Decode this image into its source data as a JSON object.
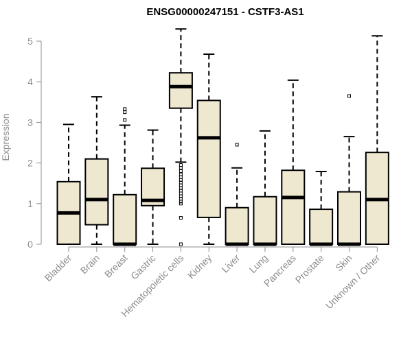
{
  "chart_data": {
    "type": "box",
    "title": "ENSG00000247151 - CSTF3-AS1",
    "xlabel": "",
    "ylabel": "Expression",
    "ylim": [
      0,
      5.25
    ],
    "yticks": [
      0,
      1,
      2,
      3,
      4,
      5
    ],
    "box_fill": "#efe8d0",
    "box_stroke": "#000000",
    "axis_color": "#8c8c8c",
    "categories": [
      "Bladder",
      "Brain",
      "Breast",
      "Gastric",
      "Hematopoietic cells",
      "Kidney",
      "Liver",
      "Lung",
      "Pancreas",
      "Prostate",
      "Skin",
      "Unknown / Other"
    ],
    "boxes": [
      {
        "whisker_low": 0,
        "q1": 0,
        "median": 0.77,
        "q3": 1.54,
        "whisker_high": 2.95,
        "outliers": []
      },
      {
        "whisker_low": 0,
        "q1": 0.48,
        "median": 1.1,
        "q3": 2.1,
        "whisker_high": 3.63,
        "outliers": []
      },
      {
        "whisker_low": 0,
        "q1": 0,
        "median": 0,
        "q3": 1.22,
        "whisker_high": 2.93,
        "outliers": [
          3.06,
          3.25,
          3.33
        ]
      },
      {
        "whisker_low": 0,
        "q1": 0.95,
        "median": 1.08,
        "q3": 1.87,
        "whisker_high": 2.81,
        "outliers": []
      },
      {
        "whisker_low": 2.02,
        "q1": 3.35,
        "median": 3.88,
        "q3": 4.22,
        "whisker_high": 5.3,
        "outliers": [
          0,
          0.65,
          1.0,
          1.05,
          1.12,
          1.18,
          1.25,
          1.32,
          1.38,
          1.45,
          1.52,
          1.58,
          1.65,
          1.72,
          1.8,
          1.88,
          1.95
        ]
      },
      {
        "whisker_low": 0,
        "q1": 0.66,
        "median": 2.62,
        "q3": 3.54,
        "whisker_high": 4.68,
        "outliers": []
      },
      {
        "whisker_low": 0,
        "q1": 0,
        "median": 0,
        "q3": 0.9,
        "whisker_high": 1.88,
        "outliers": [
          2.45
        ]
      },
      {
        "whisker_low": 0,
        "q1": 0,
        "median": 0,
        "q3": 1.17,
        "whisker_high": 2.79,
        "outliers": []
      },
      {
        "whisker_low": 0,
        "q1": 0,
        "median": 1.15,
        "q3": 1.82,
        "whisker_high": 4.04,
        "outliers": []
      },
      {
        "whisker_low": 0,
        "q1": 0,
        "median": 0,
        "q3": 0.86,
        "whisker_high": 1.79,
        "outliers": []
      },
      {
        "whisker_low": 0,
        "q1": 0,
        "median": 0,
        "q3": 1.29,
        "whisker_high": 2.65,
        "outliers": [
          3.65
        ]
      },
      {
        "whisker_low": 0,
        "q1": 0,
        "median": 1.1,
        "q3": 2.26,
        "whisker_high": 5.13,
        "outliers": []
      }
    ]
  }
}
